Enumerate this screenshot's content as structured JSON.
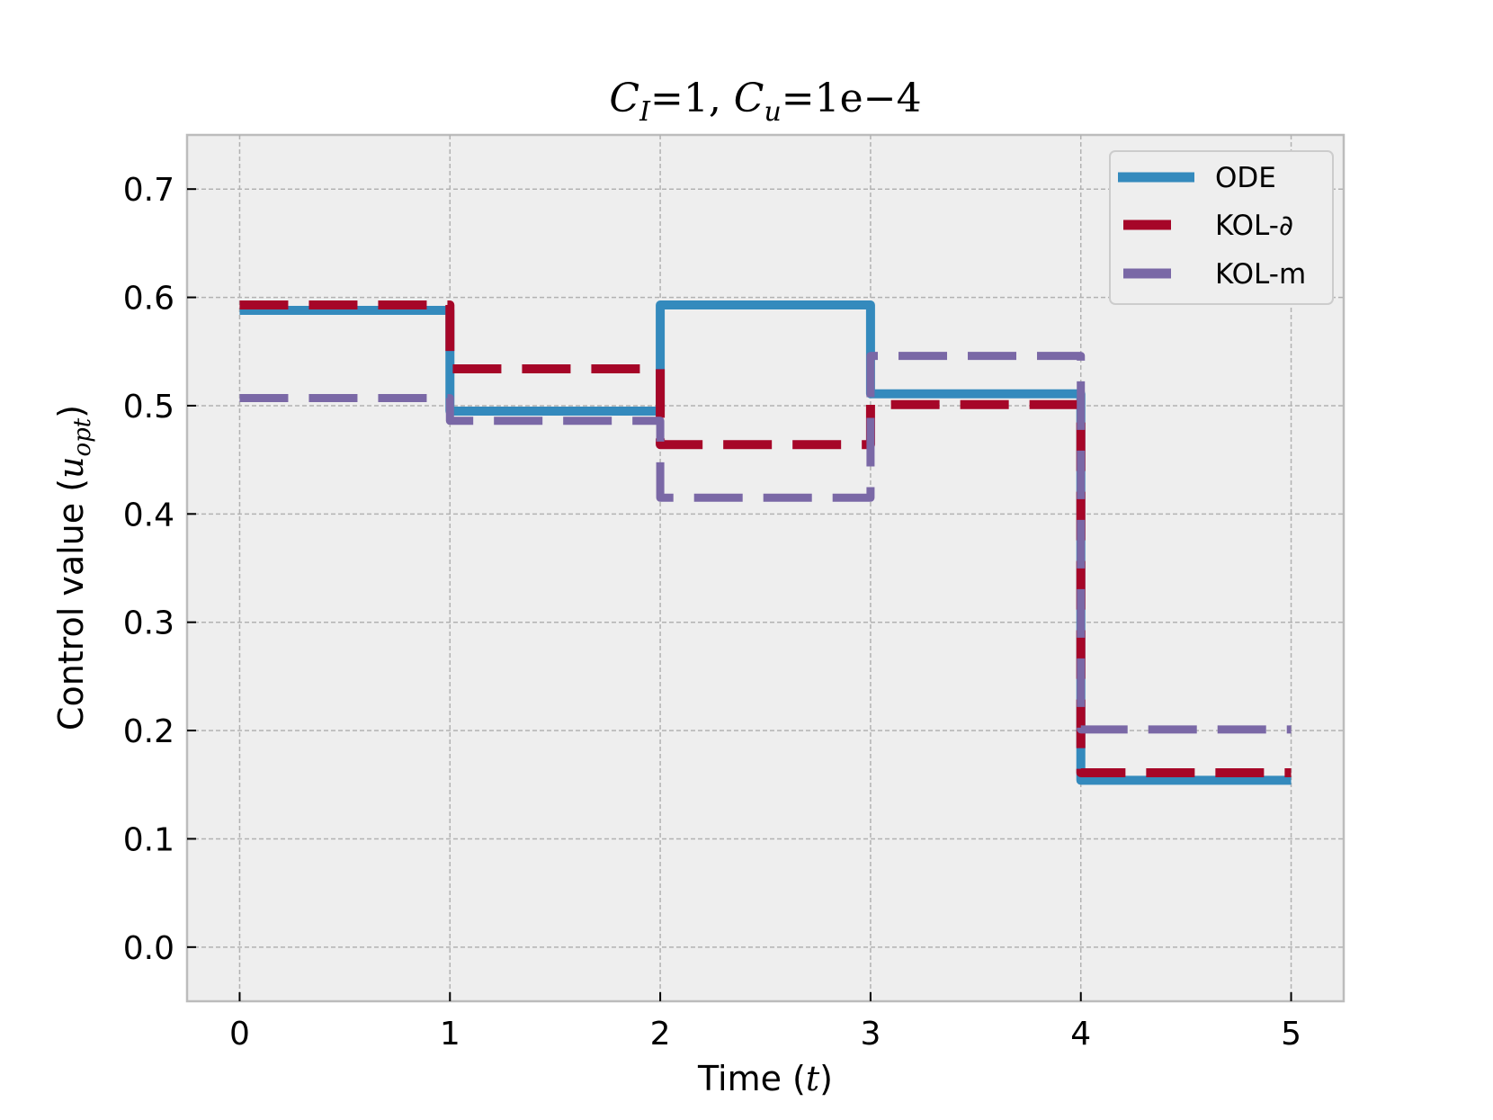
{
  "chart_data": {
    "type": "line",
    "title": {
      "c1": "C",
      "sub1": "I",
      "mid": "=1,  ",
      "c2": "C",
      "sub2": "u",
      "end": "=1e−4"
    },
    "xlabel": {
      "text": "Time (",
      "var": "t",
      "close": ")"
    },
    "ylabel": {
      "text": "Control value (",
      "var": "u",
      "sub": "opt",
      "close": ")"
    },
    "xlim": [
      -0.25,
      5.25
    ],
    "ylim": [
      -0.05,
      0.75
    ],
    "xticks": [
      "0",
      "1",
      "2",
      "3",
      "4",
      "5"
    ],
    "yticks": [
      "0.0",
      "0.1",
      "0.2",
      "0.3",
      "0.4",
      "0.5",
      "0.6",
      "0.7"
    ],
    "grid": true,
    "legend_position": "top-right",
    "step_edges": [
      0,
      1,
      2,
      3,
      4,
      5
    ],
    "series": [
      {
        "name": "ODE",
        "color": "#348ABD",
        "style": "solid",
        "values": [
          0.588,
          0.495,
          0.593,
          0.511,
          0.154
        ]
      },
      {
        "name": "KOL-∂",
        "color": "#A60628",
        "style": "dashed",
        "values": [
          0.593,
          0.534,
          0.464,
          0.501,
          0.161
        ]
      },
      {
        "name": "KOL-m",
        "color": "#7A68A6",
        "style": "dashed",
        "values": [
          0.507,
          0.486,
          0.415,
          0.546,
          0.201
        ]
      }
    ]
  }
}
